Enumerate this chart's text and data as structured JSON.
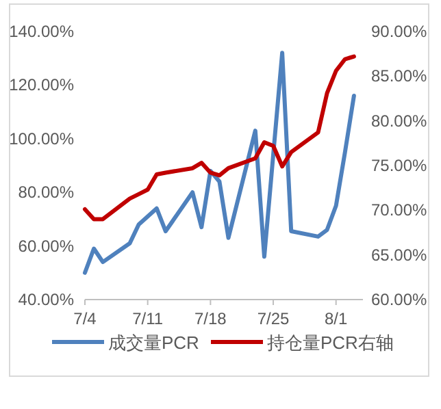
{
  "chart_data": {
    "type": "line",
    "x": [
      "--07-04",
      "--07-05",
      "--07-06",
      "--07-09",
      "--07-10",
      "--07-11",
      "--07-12",
      "--07-13",
      "--07-16",
      "--07-17",
      "--07-18",
      "--07-19",
      "--07-20",
      "--07-23",
      "--07-24",
      "--07-25",
      "--07-26",
      "--07-27",
      "--07-30",
      "--07-31",
      "--08-01",
      "--08-02",
      "--08-03"
    ],
    "xlim": [
      "--07-04",
      "--08-04"
    ],
    "xticks": [
      {
        "value": "--07-04",
        "label": "7/4"
      },
      {
        "value": "--07-11",
        "label": "7/11"
      },
      {
        "value": "--07-18",
        "label": "7/18"
      },
      {
        "value": "--07-25",
        "label": "7/25"
      },
      {
        "value": "--08-01",
        "label": "8/1"
      }
    ],
    "ylim": [
      40,
      140
    ],
    "yticks": [
      {
        "value": 40,
        "label": "40.00%"
      },
      {
        "value": 60,
        "label": "60.00%"
      },
      {
        "value": 80,
        "label": "80.00%"
      },
      {
        "value": 100,
        "label": "100.00%"
      },
      {
        "value": 120,
        "label": "120.00%"
      },
      {
        "value": 140,
        "label": "140.00%"
      }
    ],
    "y2lim": [
      60,
      90
    ],
    "y2ticks": [
      {
        "value": 60,
        "label": "60.00%"
      },
      {
        "value": 65,
        "label": "65.00%"
      },
      {
        "value": 70,
        "label": "70.00%"
      },
      {
        "value": 75,
        "label": "75.00%"
      },
      {
        "value": 80,
        "label": "80.00%"
      },
      {
        "value": 85,
        "label": "85.00%"
      },
      {
        "value": 90,
        "label": "90.00%"
      }
    ],
    "series": [
      {
        "name": "成交量PCR",
        "color": "#4f81bd",
        "values": [
          50,
          59,
          54,
          61,
          68,
          71,
          74,
          65.5,
          80,
          67,
          88,
          84,
          63,
          103,
          56,
          94,
          132,
          65.5,
          63.5,
          66,
          75,
          95,
          116
        ]
      },
      {
        "name": "持仓量PCR右轴",
        "color": "#c00000",
        "axis": "y2",
        "values": [
          70.1,
          69,
          69,
          71.3,
          71.8,
          72.3,
          74,
          74.2,
          74.7,
          75.3,
          74.2,
          73.9,
          74.7,
          75.8,
          77.6,
          77.2,
          74.9,
          76.5,
          78.7,
          83.1,
          85.6,
          86.9,
          87.2
        ]
      }
    ],
    "legend": "bottom",
    "grid": false,
    "marker": "none",
    "line_style": "solid"
  }
}
